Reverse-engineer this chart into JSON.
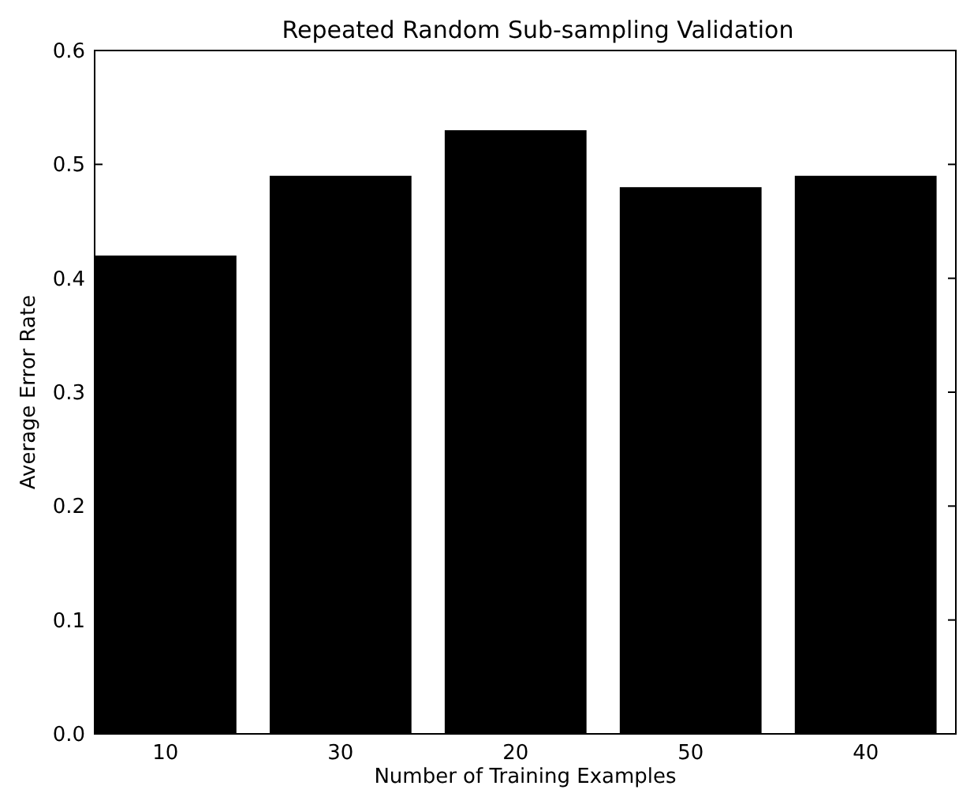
{
  "chart_data": {
    "type": "bar",
    "title": "Repeated Random Sub-sampling Validation",
    "xlabel": "Number of Training Examples",
    "ylabel": "Average Error Rate",
    "categories": [
      "10",
      "30",
      "20",
      "50",
      "40"
    ],
    "values": [
      0.42,
      0.49,
      0.53,
      0.48,
      0.49
    ],
    "color": "#000000",
    "ylim": [
      0,
      0.6
    ],
    "yticks": [
      {
        "value": 0,
        "label": "0.0"
      },
      0.1,
      0.2,
      0.3,
      0.4,
      0.5,
      0.6
    ],
    "grid": false
  }
}
